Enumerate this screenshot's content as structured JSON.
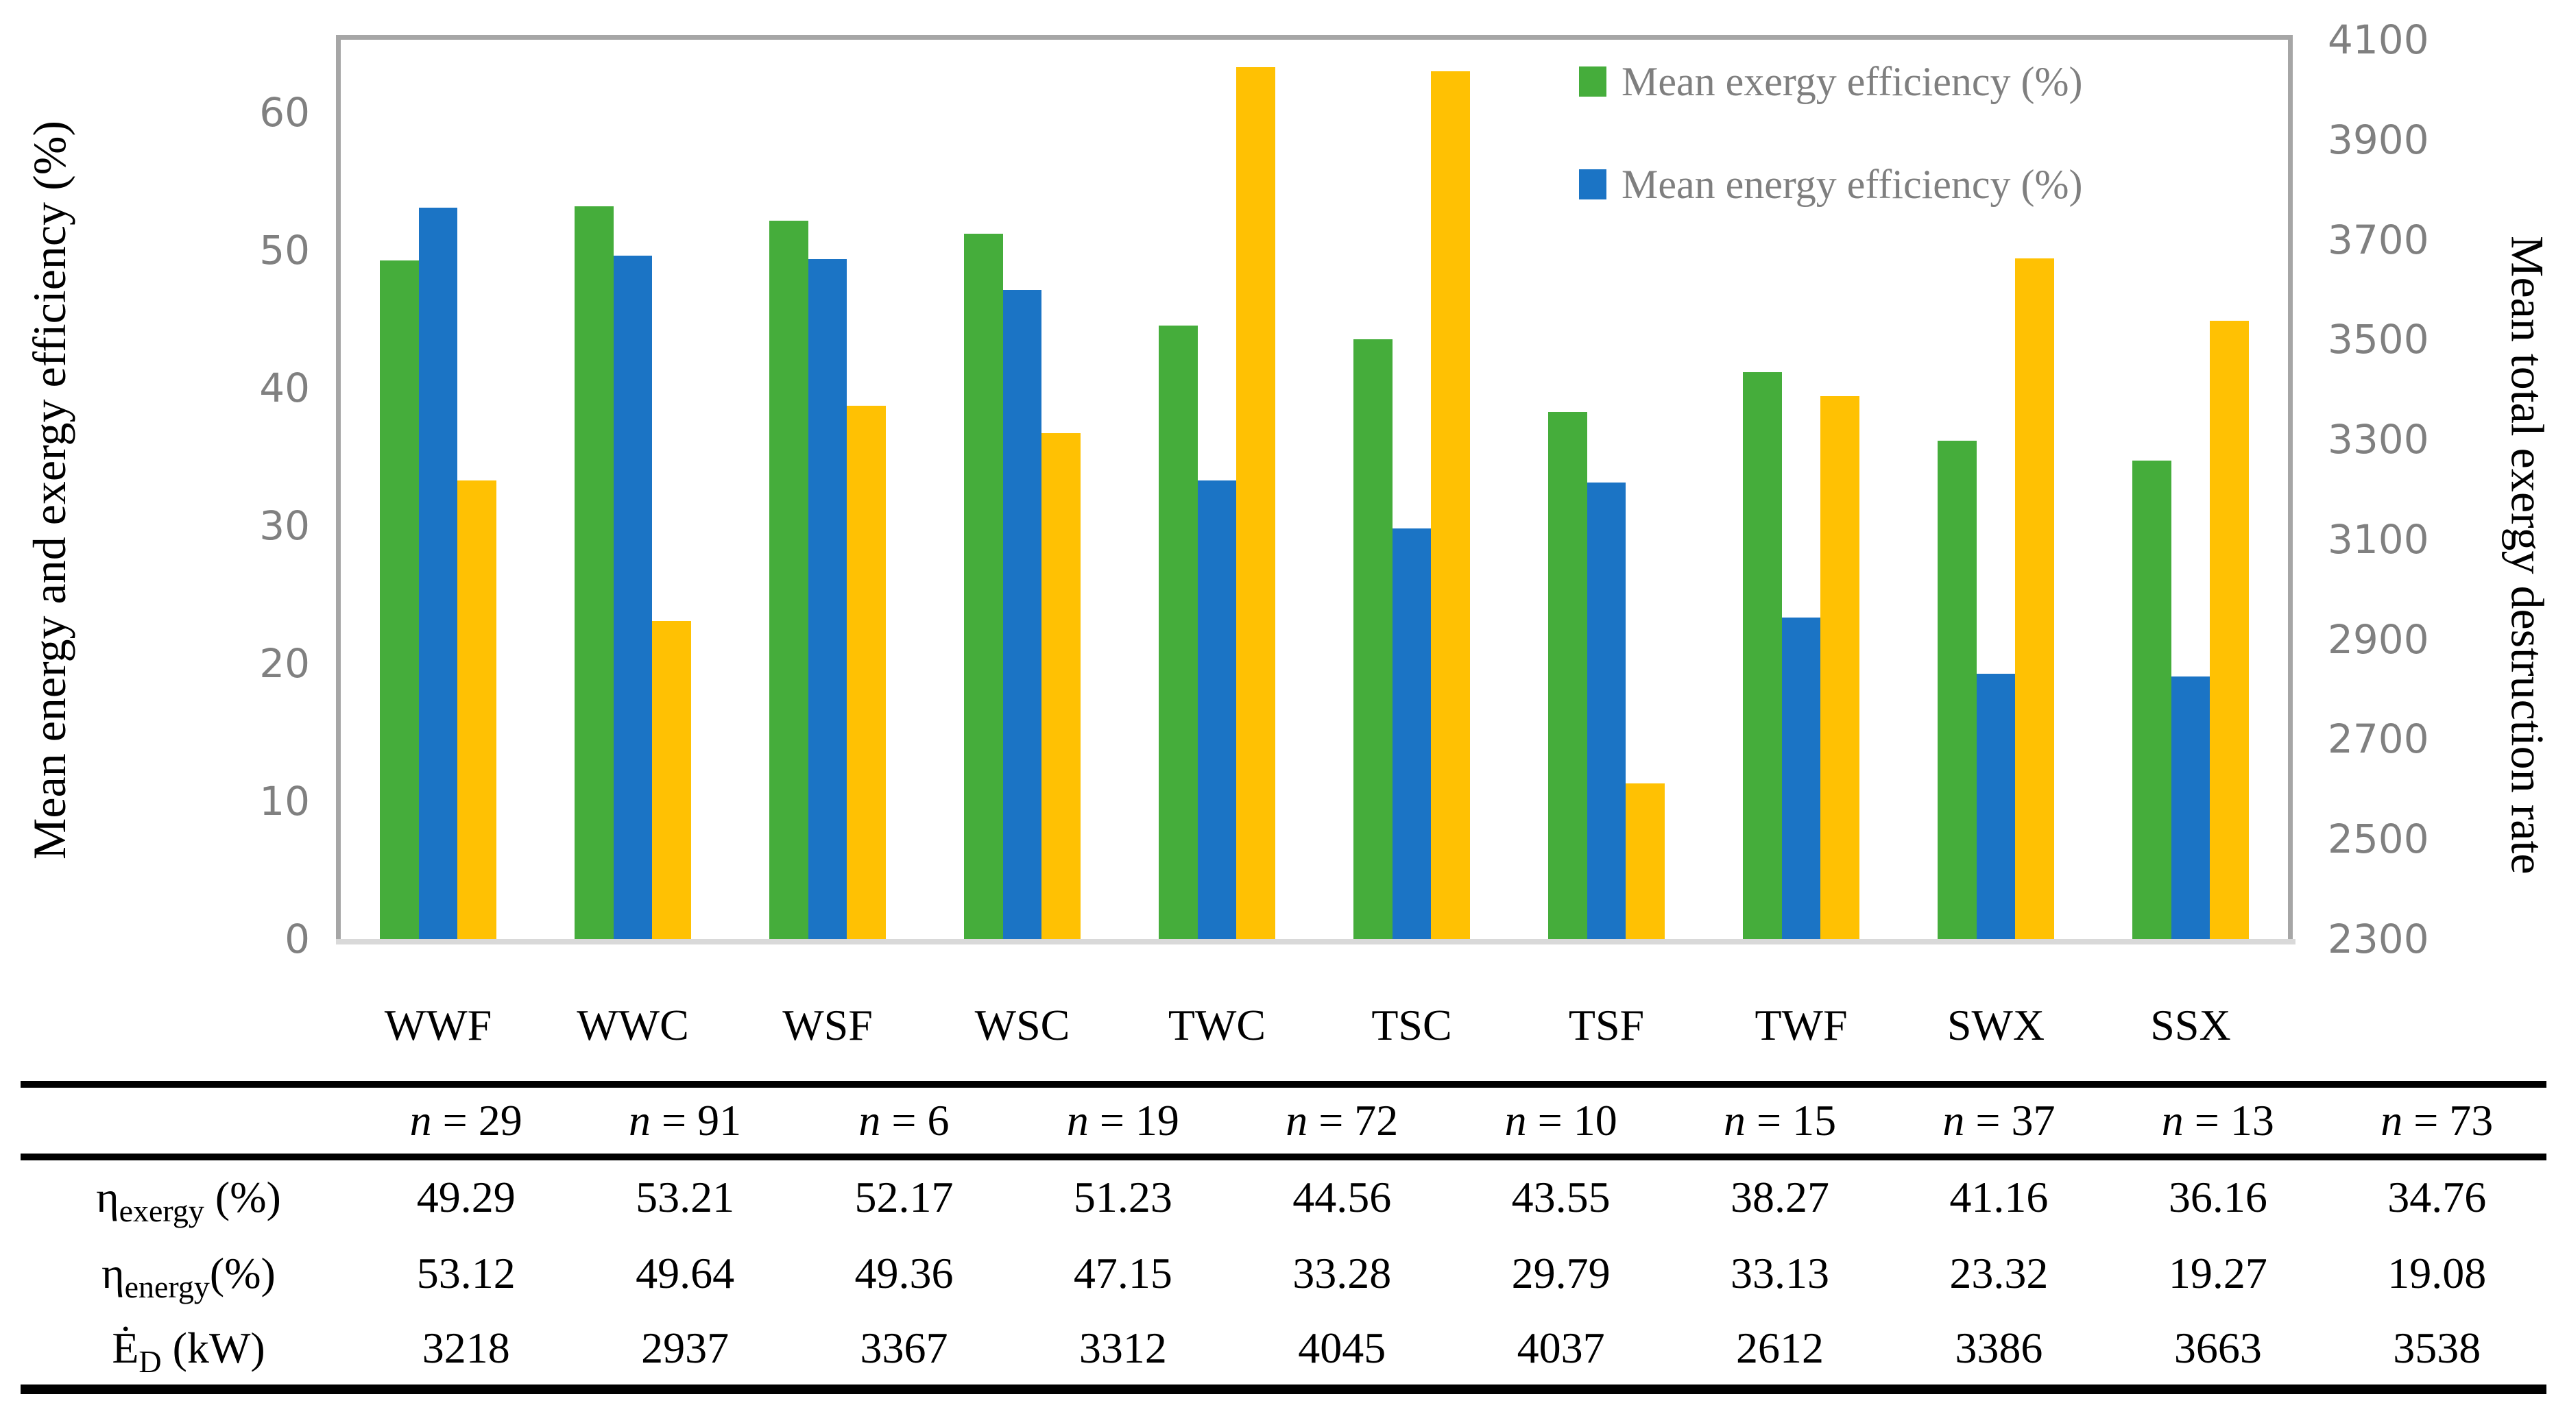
{
  "figure": {
    "background": "#FFFFFF",
    "frame_color": "#A6A6A6",
    "baseline_color": "#D9D9D9",
    "tick_color": "#808080",
    "legend_text_color": "#7F7F7F"
  },
  "chart_data": {
    "type": "bar",
    "grid": false,
    "title": "",
    "legend_position": "top-right-inside",
    "categories": [
      "WWF",
      "WWC",
      "WSF",
      "WSC",
      "TWC",
      "TSC",
      "TSF",
      "TWF",
      "SWX",
      "SSX"
    ],
    "series": [
      {
        "name": "Mean exergy efficiency (%)",
        "axis": "left",
        "color": "#45AD3B",
        "values": [
          49.29,
          53.21,
          52.17,
          51.23,
          44.56,
          43.55,
          38.27,
          41.16,
          36.16,
          34.76
        ]
      },
      {
        "name": "Mean energy efficiency (%)",
        "axis": "left",
        "color": "#1B74C5",
        "values": [
          53.12,
          49.64,
          49.36,
          47.15,
          33.28,
          29.79,
          33.13,
          23.32,
          19.27,
          19.08
        ]
      },
      {
        "name": "Mean total exergy destruction rate",
        "axis": "right",
        "color": "#FFC103",
        "values": [
          3218,
          2937,
          3367,
          3312,
          4045,
          4037,
          2612,
          3386,
          3663,
          3538
        ],
        "in_legend": false
      }
    ],
    "left_axis": {
      "title": "Mean energy and exergy efficiency (%)",
      "ticks": [
        0,
        10,
        20,
        30,
        40,
        50,
        60
      ],
      "min": 0,
      "max": 65.3
    },
    "right_axis": {
      "title": "Mean total exergy destruction rate",
      "ticks": [
        2300,
        2500,
        2700,
        2900,
        3100,
        3300,
        3500,
        3700,
        3900,
        4100
      ],
      "min": 2300,
      "max": 4100
    }
  },
  "legend": {
    "items": [
      {
        "label": "Mean exergy efficiency (%)",
        "color": "#45AD3B"
      },
      {
        "label": "Mean energy efficiency (%)",
        "color": "#1B74C5"
      }
    ]
  },
  "table": {
    "separator": " = ",
    "header": {
      "var": "n",
      "counts": [
        "29",
        "91",
        "6",
        "19",
        "72",
        "10",
        "15",
        "37",
        "13",
        "73"
      ]
    },
    "rows": [
      {
        "label": {
          "base": "η",
          "sub": "exergy",
          "suffix": " (%)"
        },
        "values": [
          "49.29",
          "53.21",
          "52.17",
          "51.23",
          "44.56",
          "43.55",
          "38.27",
          "41.16",
          "36.16",
          "34.76"
        ]
      },
      {
        "label": {
          "base": "η",
          "sub": "energy",
          "suffix": "(%)"
        },
        "values": [
          "53.12",
          "49.64",
          "49.36",
          "47.15",
          "33.28",
          "29.79",
          "33.13",
          "23.32",
          "19.27",
          "19.08"
        ]
      },
      {
        "label": {
          "base": "Ė",
          "sub": "D",
          "suffix": " (kW)"
        },
        "values": [
          "3218",
          "2937",
          "3367",
          "3312",
          "4045",
          "4037",
          "2612",
          "3386",
          "3663",
          "3538"
        ]
      }
    ]
  }
}
